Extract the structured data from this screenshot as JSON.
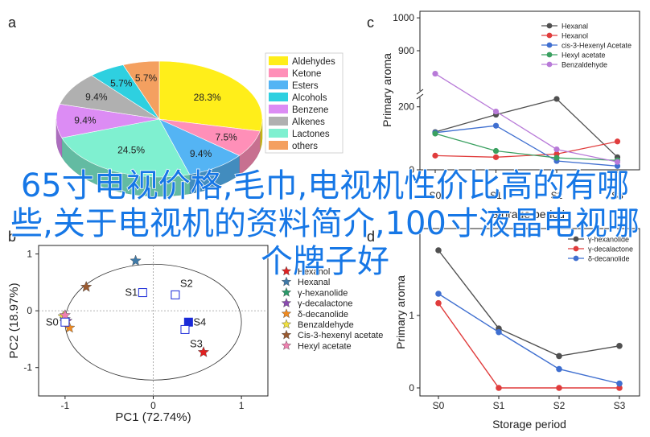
{
  "overlay_title": "65寸电视价格,毛巾,电视机性价比高的有哪些,关于电视机的资料简介,100寸液晶电视哪个牌子好",
  "chart_data": [
    {
      "panel": "a",
      "type": "pie",
      "slices": [
        {
          "label": "Aldehydes",
          "value": 28.3,
          "display": "28.3%",
          "color": "#ffee1a"
        },
        {
          "label": "Ketone",
          "value": 7.5,
          "display": "7.5%",
          "color": "#ff8fb8"
        },
        {
          "label": "Esters",
          "value": 9.4,
          "display": "9.4%",
          "color": "#54b4f4"
        },
        {
          "label": "Lactones",
          "value": 24.5,
          "display": "24.5%",
          "color": "#7ff0d0"
        },
        {
          "label": "Benzene",
          "value": 9.4,
          "display": "9.4%",
          "color": "#dc8cf4"
        },
        {
          "label": "Alkenes",
          "value": 9.4,
          "display": "9.4%",
          "color": "#b0b0b0"
        },
        {
          "label": "Alcohols",
          "value": 5.7,
          "display": "5.7%",
          "color": "#2ed0e0"
        },
        {
          "label": "others",
          "value": 5.7,
          "display": "5.7%",
          "color": "#f4a060"
        }
      ],
      "legend": [
        {
          "label": "Aldehydes",
          "color": "#ffee1a"
        },
        {
          "label": "Ketone",
          "color": "#ff8fb8"
        },
        {
          "label": "Esters",
          "color": "#54b4f4"
        },
        {
          "label": "Alcohols",
          "color": "#2ed0e0"
        },
        {
          "label": "Benzene",
          "color": "#dc8cf4"
        },
        {
          "label": "Alkenes",
          "color": "#b0b0b0"
        },
        {
          "label": "Lactones",
          "color": "#7ff0d0"
        },
        {
          "label": "others",
          "color": "#f4a060"
        }
      ],
      "legend_position": "right"
    },
    {
      "panel": "b",
      "type": "scatter",
      "xlabel": "PC1 (72.74%)",
      "ylabel": "PC2 (18.97%)",
      "xlim": [
        -1.3,
        1.3
      ],
      "ylim": [
        -1.5,
        1.15
      ],
      "xticks": [
        -1,
        0,
        1
      ],
      "yticks": [
        -1,
        0,
        1
      ],
      "sample_points": [
        {
          "label": "S0",
          "x": -1.0,
          "y": -0.2
        },
        {
          "label": "S1",
          "x": -0.12,
          "y": 0.32
        },
        {
          "label": "S2",
          "x": 0.25,
          "y": 0.28
        },
        {
          "label": "S4",
          "x": 0.4,
          "y": -0.2
        },
        {
          "label": "S3",
          "x": 0.36,
          "y": -0.33
        }
      ],
      "variables": [
        {
          "name": "Hexanol",
          "x": 0.57,
          "y": -0.73,
          "color": "#e02020"
        },
        {
          "name": "Hexanal",
          "x": -0.2,
          "y": 0.88,
          "color": "#3f7aa8"
        },
        {
          "name": "γ-hexanolide",
          "x": -1.0,
          "y": -0.15,
          "color": "#2a9a6a"
        },
        {
          "name": "γ-decalactone",
          "x": -0.98,
          "y": -0.18,
          "color": "#8a4ab0"
        },
        {
          "name": "δ-decanolide",
          "x": -0.95,
          "y": -0.3,
          "color": "#f08a20"
        },
        {
          "name": "Benzaldehyde",
          "x": -1.02,
          "y": -0.1,
          "color": "#f0e040"
        },
        {
          "name": "Cis-3-hexenyl acetate",
          "x": -0.76,
          "y": 0.42,
          "color": "#9a5a30"
        },
        {
          "name": "Hexyl acetate",
          "x": -1.0,
          "y": -0.08,
          "color": "#f080b0"
        }
      ],
      "legend_position": "right"
    },
    {
      "panel": "c",
      "type": "line",
      "xlabel": "Storage period",
      "ylabel": "Primary aroma",
      "categories": [
        "S0",
        "S1",
        "S2",
        "S3"
      ],
      "yticks": [
        0,
        200,
        900,
        1000
      ],
      "y_axis_break": true,
      "series": [
        {
          "name": "Hexanal",
          "color": "#505050",
          "values": [
            120,
            175,
            225,
            40
          ]
        },
        {
          "name": "Hexanol",
          "color": "#e03c3c",
          "values": [
            45,
            40,
            50,
            90
          ]
        },
        {
          "name": "cis-3-Hexenyl Acetate",
          "color": "#3f6fd0",
          "values": [
            118,
            140,
            28,
            12
          ]
        },
        {
          "name": "Hexyl acetate",
          "color": "#3aa060",
          "values": [
            115,
            60,
            38,
            30
          ]
        },
        {
          "name": "Benzaldehyde",
          "color": "#b87ad8",
          "values": [
            830,
            715,
            65,
            25
          ]
        }
      ],
      "legend_position": "top-right"
    },
    {
      "panel": "d",
      "type": "line",
      "xlabel": "Storage period",
      "ylabel": "Primary aroma",
      "categories": [
        "S0",
        "S1",
        "S2",
        "S3"
      ],
      "ylim": [
        0,
        2.2
      ],
      "yticks": [
        0,
        1
      ],
      "series": [
        {
          "name": "γ-hexanolide",
          "color": "#505050",
          "values": [
            1.9,
            0.82,
            0.44,
            0.58
          ]
        },
        {
          "name": "γ-decalactone",
          "color": "#e03c3c",
          "values": [
            1.17,
            0.0,
            0.0,
            0.0
          ]
        },
        {
          "name": "δ-decanolide",
          "color": "#3f6fd0",
          "values": [
            1.3,
            0.77,
            0.26,
            0.06
          ]
        }
      ],
      "legend_position": "top-right"
    }
  ]
}
